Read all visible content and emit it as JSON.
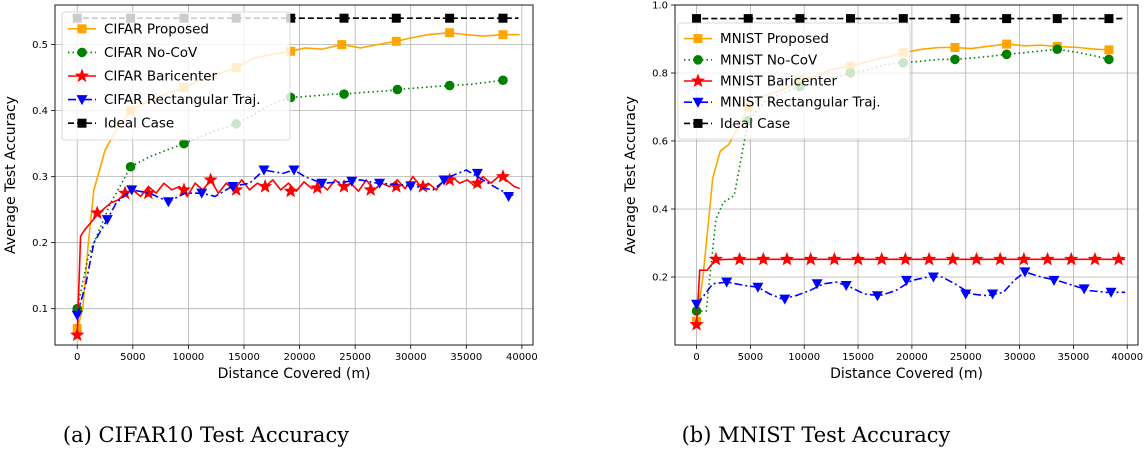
{
  "chart_data": [
    {
      "type": "line",
      "caption": "(a) CIFAR10 Test Accuracy",
      "xlabel": "Distance Covered (m)",
      "ylabel": "Average Test Accuracy",
      "xlim": [
        -2000,
        41000
      ],
      "ylim": [
        0.045,
        0.56
      ],
      "xticks": [
        0,
        5000,
        10000,
        15000,
        20000,
        25000,
        30000,
        35000,
        40000
      ],
      "yticks": [
        0.1,
        0.2,
        0.3,
        0.4,
        0.5
      ],
      "grid": true,
      "legend_position": "upper-left",
      "series": [
        {
          "name": "CIFAR Proposed",
          "color": "#FFA500",
          "linestyle": "solid",
          "marker": "square",
          "x": [
            0,
            500,
            1000,
            1500,
            2500,
            3500,
            4800,
            6500,
            8000,
            9600,
            11000,
            12500,
            14300,
            16000,
            17500,
            19200,
            20500,
            22000,
            23800,
            25500,
            27000,
            28700,
            30000,
            31500,
            33500,
            35000,
            36500,
            38300,
            39800
          ],
          "y": [
            0.07,
            0.1,
            0.2,
            0.28,
            0.34,
            0.37,
            0.4,
            0.415,
            0.425,
            0.435,
            0.445,
            0.455,
            0.465,
            0.48,
            0.485,
            0.49,
            0.495,
            0.493,
            0.5,
            0.495,
            0.5,
            0.505,
            0.51,
            0.515,
            0.518,
            0.515,
            0.513,
            0.515,
            0.515
          ],
          "marker_x": [
            0,
            4800,
            9600,
            14300,
            19200,
            23800,
            28700,
            33500,
            38300
          ],
          "marker_y": [
            0.07,
            0.4,
            0.435,
            0.465,
            0.49,
            0.5,
            0.505,
            0.518,
            0.515
          ]
        },
        {
          "name": "CIFAR No-CoV",
          "color": "#008000",
          "linestyle": "dotted",
          "marker": "circle",
          "x": [
            0,
            1000,
            2000,
            3000,
            4000,
            4800,
            6500,
            8000,
            9600,
            11000,
            12500,
            14300,
            16000,
            17500,
            19200,
            21000,
            23000,
            24000,
            26000,
            28000,
            28800,
            31000,
            33500,
            35500,
            38300
          ],
          "y": [
            0.1,
            0.18,
            0.22,
            0.26,
            0.29,
            0.315,
            0.33,
            0.34,
            0.35,
            0.36,
            0.37,
            0.38,
            0.395,
            0.41,
            0.42,
            0.422,
            0.425,
            0.425,
            0.428,
            0.43,
            0.432,
            0.435,
            0.438,
            0.44,
            0.446
          ],
          "marker_x": [
            0,
            4800,
            9600,
            14300,
            19200,
            24000,
            28800,
            33500,
            38300
          ],
          "marker_y": [
            0.1,
            0.315,
            0.35,
            0.38,
            0.42,
            0.425,
            0.432,
            0.438,
            0.446
          ]
        },
        {
          "name": "CIFAR Baricenter",
          "color": "#FF0000",
          "linestyle": "solid",
          "marker": "star",
          "x": [
            0,
            300,
            700,
            1200,
            1700,
            2300,
            3000,
            3700,
            4300,
            5000,
            5700,
            6400,
            7100,
            7800,
            8500,
            9200,
            9900,
            10600,
            11300,
            12000,
            12700,
            13400,
            14100,
            14800,
            15500,
            16200,
            16900,
            17600,
            18300,
            19000,
            19700,
            20400,
            21100,
            21800,
            22500,
            23200,
            23900,
            24600,
            25300,
            26000,
            26700,
            27400,
            28100,
            28800,
            29500,
            30200,
            30900,
            31600,
            32300,
            33000,
            33700,
            34400,
            35100,
            35800,
            36500,
            37200,
            37900,
            38600,
            39300,
            39800
          ],
          "y": [
            0.06,
            0.21,
            0.22,
            0.23,
            0.24,
            0.25,
            0.26,
            0.265,
            0.275,
            0.28,
            0.27,
            0.285,
            0.275,
            0.29,
            0.28,
            0.285,
            0.27,
            0.29,
            0.28,
            0.295,
            0.275,
            0.29,
            0.28,
            0.295,
            0.28,
            0.29,
            0.285,
            0.295,
            0.28,
            0.29,
            0.278,
            0.292,
            0.282,
            0.29,
            0.28,
            0.295,
            0.285,
            0.29,
            0.278,
            0.295,
            0.28,
            0.29,
            0.285,
            0.295,
            0.282,
            0.3,
            0.285,
            0.29,
            0.28,
            0.295,
            0.3,
            0.29,
            0.295,
            0.285,
            0.3,
            0.29,
            0.3,
            0.295,
            0.285,
            0.282
          ],
          "marker_x": [
            0,
            1800,
            4300,
            6400,
            9600,
            12000,
            14300,
            16900,
            19200,
            21600,
            24000,
            26400,
            28700,
            31100,
            33500,
            36000,
            38300
          ],
          "marker_y": [
            0.06,
            0.245,
            0.275,
            0.275,
            0.28,
            0.295,
            0.28,
            0.285,
            0.278,
            0.283,
            0.285,
            0.28,
            0.285,
            0.285,
            0.295,
            0.29,
            0.3
          ]
        },
        {
          "name": "CIFAR Rectangular Traj.",
          "color": "#0000FF",
          "linestyle": "dashdot",
          "marker": "triangle-down",
          "x": [
            0,
            800,
            1500,
            2700,
            3500,
            4900,
            6500,
            8200,
            9700,
            11200,
            12400,
            13900,
            15500,
            16800,
            18500,
            19500,
            20500,
            22000,
            24000,
            25500,
            27000,
            29000,
            30500,
            32000,
            33500,
            35000,
            36500,
            38000,
            39500
          ],
          "y": [
            0.09,
            0.14,
            0.2,
            0.235,
            0.26,
            0.28,
            0.275,
            0.262,
            0.275,
            0.275,
            0.27,
            0.285,
            0.29,
            0.31,
            0.305,
            0.31,
            0.3,
            0.29,
            0.292,
            0.295,
            0.29,
            0.288,
            0.285,
            0.28,
            0.3,
            0.31,
            0.295,
            0.28,
            0.27
          ],
          "marker_x": [
            0,
            2700,
            4900,
            8200,
            11200,
            14000,
            16800,
            19500,
            22000,
            24700,
            27200,
            30000,
            33000,
            36000,
            38800
          ],
          "marker_y": [
            0.09,
            0.235,
            0.28,
            0.262,
            0.275,
            0.285,
            0.31,
            0.31,
            0.29,
            0.293,
            0.29,
            0.286,
            0.295,
            0.305,
            0.27
          ]
        },
        {
          "name": "Ideal Case",
          "color": "#000000",
          "linestyle": "dashed",
          "marker": "square",
          "x": [
            -300,
            39700
          ],
          "y": [
            0.54,
            0.54
          ],
          "marker_x": [
            0,
            4800,
            9600,
            14300,
            19200,
            24000,
            28700,
            33500,
            38300
          ],
          "marker_y": [
            0.54,
            0.54,
            0.54,
            0.54,
            0.54,
            0.54,
            0.54,
            0.54,
            0.54
          ]
        }
      ]
    },
    {
      "type": "line",
      "caption": "(b) MNIST Test Accuracy",
      "xlabel": "Distance Covered (m)",
      "ylabel": "Average Test Accuracy",
      "xlim": [
        -2000,
        41000
      ],
      "ylim": [
        0.0,
        1.0
      ],
      "xticks": [
        0,
        5000,
        10000,
        15000,
        20000,
        25000,
        30000,
        35000,
        40000
      ],
      "yticks": [
        0.2,
        0.4,
        0.6,
        0.8,
        1.0
      ],
      "grid": true,
      "legend_position": "upper-left",
      "series": [
        {
          "name": "MNIST Proposed",
          "color": "#FFA500",
          "linestyle": "solid",
          "marker": "square",
          "x": [
            0,
            600,
            1500,
            2200,
            3000,
            4000,
            4800,
            6000,
            8000,
            9600,
            11000,
            12500,
            14300,
            16000,
            17500,
            19200,
            21000,
            22500,
            24000,
            25500,
            27000,
            28800,
            30500,
            32000,
            33500,
            35500,
            37000,
            38300
          ],
          "y": [
            0.07,
            0.2,
            0.49,
            0.57,
            0.59,
            0.65,
            0.7,
            0.73,
            0.75,
            0.78,
            0.79,
            0.81,
            0.82,
            0.835,
            0.845,
            0.86,
            0.87,
            0.875,
            0.875,
            0.872,
            0.878,
            0.885,
            0.88,
            0.882,
            0.878,
            0.875,
            0.87,
            0.868
          ],
          "marker_x": [
            0,
            4800,
            9600,
            14300,
            19200,
            24000,
            28800,
            33500,
            38300
          ],
          "marker_y": [
            0.07,
            0.7,
            0.78,
            0.82,
            0.86,
            0.875,
            0.885,
            0.878,
            0.868
          ],
          "extra": [
            [
              39000,
              0.865
            ]
          ]
        },
        {
          "name": "MNIST No-CoV",
          "color": "#008000",
          "linestyle": "dotted",
          "marker": "circle",
          "x": [
            0,
            900,
            1800,
            2500,
            3500,
            4800,
            6500,
            8000,
            9600,
            11000,
            12500,
            14300,
            16000,
            17500,
            19200,
            21000,
            22500,
            24000,
            26000,
            27500,
            28800,
            30500,
            32000,
            33500,
            35500,
            37000,
            38300
          ],
          "y": [
            0.1,
            0.1,
            0.37,
            0.42,
            0.44,
            0.66,
            0.72,
            0.74,
            0.76,
            0.77,
            0.785,
            0.8,
            0.81,
            0.825,
            0.83,
            0.835,
            0.84,
            0.84,
            0.845,
            0.85,
            0.855,
            0.86,
            0.865,
            0.87,
            0.86,
            0.85,
            0.84
          ],
          "marker_x": [
            0,
            4800,
            9600,
            14300,
            19200,
            24000,
            28800,
            33500,
            38300
          ],
          "marker_y": [
            0.1,
            0.66,
            0.76,
            0.8,
            0.83,
            0.84,
            0.855,
            0.87,
            0.84
          ]
        },
        {
          "name": "MNIST Baricenter",
          "color": "#FF0000",
          "linestyle": "solid",
          "marker": "star",
          "x": [
            0,
            300,
            1000,
            1700,
            3000,
            10000,
            20000,
            30000,
            39800
          ],
          "y": [
            0.06,
            0.22,
            0.22,
            0.25,
            0.252,
            0.252,
            0.252,
            0.252,
            0.252
          ],
          "marker_x": [
            0,
            1800,
            4000,
            6200,
            8400,
            10600,
            12800,
            15000,
            17200,
            19400,
            21600,
            23800,
            26000,
            28200,
            30400,
            32600,
            34800,
            37000,
            39200
          ],
          "marker_y": [
            0.06,
            0.252,
            0.252,
            0.252,
            0.252,
            0.252,
            0.252,
            0.252,
            0.252,
            0.252,
            0.252,
            0.252,
            0.252,
            0.252,
            0.252,
            0.252,
            0.252,
            0.252,
            0.252
          ]
        },
        {
          "name": "MNIST Rectangular Traj.",
          "color": "#0000FF",
          "linestyle": "dashdot",
          "marker": "triangle-down",
          "x": [
            0,
            800,
            1500,
            2800,
            4500,
            5700,
            6800,
            8000,
            9200,
            10500,
            11800,
            13000,
            14300,
            15600,
            17000,
            18500,
            20000,
            21500,
            22800,
            24000,
            25500,
            27000,
            28500,
            29500,
            30500,
            32000,
            33500,
            35000,
            36500,
            38000,
            39800
          ],
          "y": [
            0.12,
            0.15,
            0.18,
            0.185,
            0.175,
            0.17,
            0.15,
            0.135,
            0.145,
            0.16,
            0.18,
            0.185,
            0.17,
            0.15,
            0.145,
            0.16,
            0.19,
            0.2,
            0.2,
            0.18,
            0.15,
            0.145,
            0.155,
            0.19,
            0.215,
            0.2,
            0.19,
            0.175,
            0.16,
            0.155,
            0.155
          ],
          "marker_x": [
            0,
            2800,
            5700,
            8200,
            11200,
            13900,
            16800,
            19500,
            22000,
            25000,
            27500,
            30500,
            33200,
            36000,
            38500
          ],
          "marker_y": [
            0.12,
            0.185,
            0.17,
            0.135,
            0.18,
            0.175,
            0.145,
            0.19,
            0.2,
            0.15,
            0.15,
            0.215,
            0.19,
            0.165,
            0.155
          ]
        },
        {
          "name": "Ideal Case",
          "color": "#000000",
          "linestyle": "dashed",
          "marker": "square",
          "x": [
            -300,
            39700
          ],
          "y": [
            0.96,
            0.96
          ],
          "marker_x": [
            0,
            4800,
            9600,
            14300,
            19200,
            24000,
            28800,
            33500,
            38300
          ],
          "marker_y": [
            0.96,
            0.96,
            0.96,
            0.96,
            0.96,
            0.96,
            0.96,
            0.96,
            0.96
          ]
        }
      ]
    }
  ]
}
